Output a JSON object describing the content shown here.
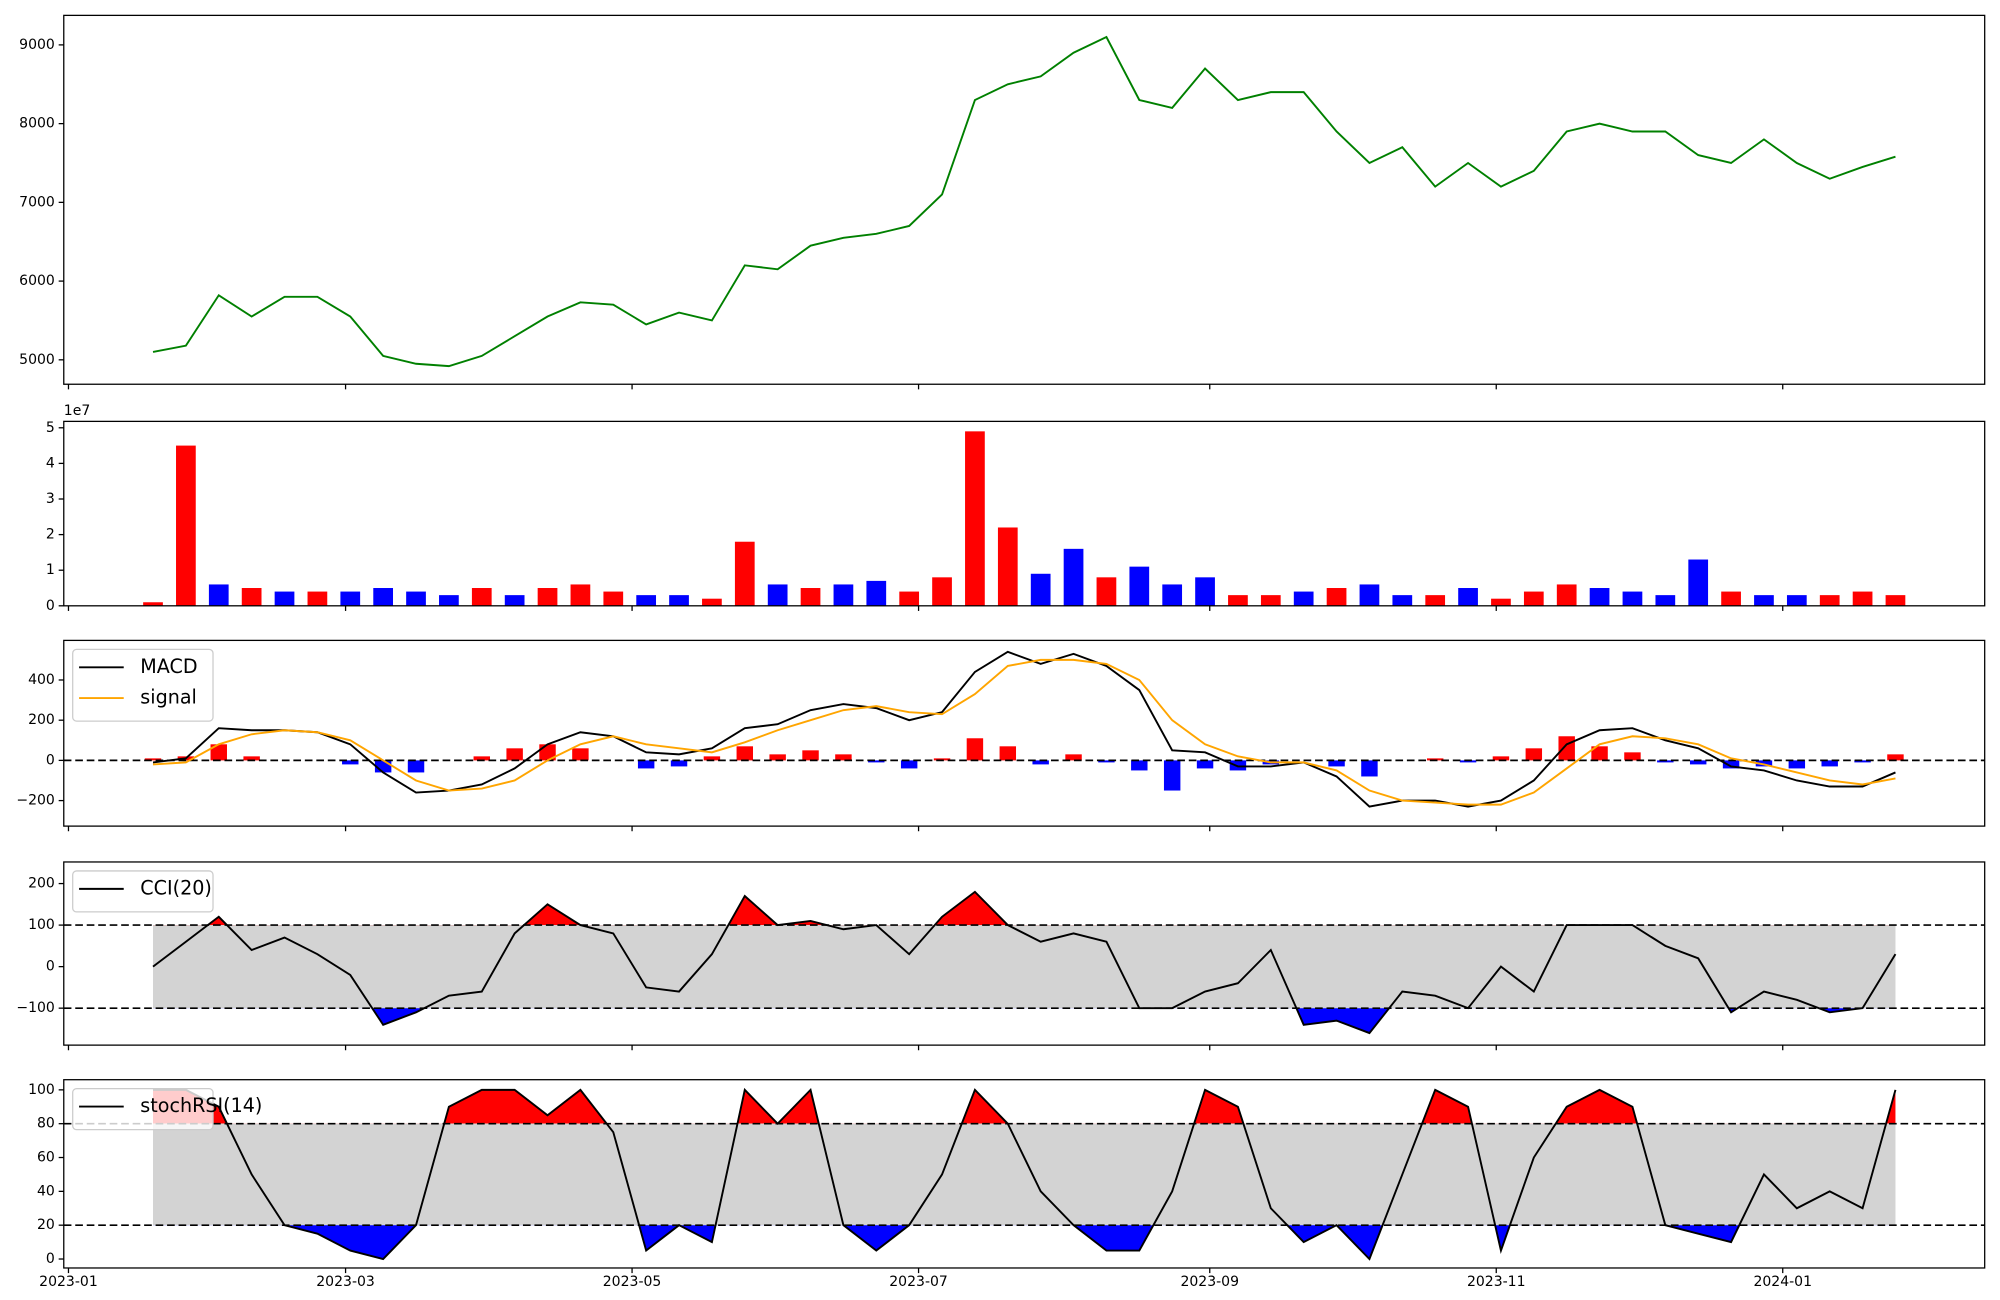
{
  "chart_data": [
    {
      "type": "line",
      "ylim": [
        4690,
        9375
      ],
      "yticks": [
        5000,
        6000,
        7000,
        8000,
        9000
      ],
      "series": [
        {
          "color": "green",
          "values": [
            5100,
            5180,
            5820,
            5550,
            5800,
            5800,
            5550,
            5050,
            4950,
            4920,
            5050,
            5300,
            5550,
            5730,
            5700,
            5450,
            5600,
            5500,
            6200,
            6150,
            6450,
            6550,
            6600,
            6700,
            7100,
            8300,
            8500,
            8600,
            8900,
            9100,
            8300,
            8200,
            8700,
            8300,
            8400,
            8400,
            7900,
            7500,
            7700,
            7200,
            7500,
            7200,
            7400,
            7900,
            8000,
            7900,
            7900,
            7600,
            7500,
            7800,
            7500,
            7300,
            7450,
            7580
          ]
        }
      ]
    },
    {
      "type": "bar",
      "ylim": [
        0,
        5.18
      ],
      "yticks": [
        0,
        1,
        2,
        3,
        4,
        5
      ],
      "y_offset_label": "1e7",
      "values": [
        0.1,
        4.5,
        0.6,
        0.5,
        0.4,
        0.4,
        0.4,
        0.5,
        0.4,
        0.3,
        0.5,
        0.3,
        0.5,
        0.6,
        0.4,
        0.3,
        0.3,
        0.2,
        1.8,
        0.6,
        0.5,
        0.6,
        0.7,
        0.4,
        0.8,
        4.9,
        2.2,
        0.9,
        1.6,
        0.8,
        1.1,
        0.6,
        0.8,
        0.3,
        0.3,
        0.4,
        0.5,
        0.6,
        0.3,
        0.3,
        0.5,
        0.2,
        0.4,
        0.6,
        0.5,
        0.4,
        0.3,
        1.3,
        0.4,
        0.3,
        0.3,
        0.3,
        0.4,
        0.3
      ],
      "colors": [
        "red",
        "red",
        "blue",
        "red",
        "blue",
        "red",
        "blue",
        "blue",
        "blue",
        "blue",
        "red",
        "blue",
        "red",
        "red",
        "red",
        "blue",
        "blue",
        "red",
        "red",
        "blue",
        "red",
        "blue",
        "blue",
        "red",
        "red",
        "red",
        "red",
        "blue",
        "blue",
        "red",
        "blue",
        "blue",
        "blue",
        "red",
        "red",
        "blue",
        "red",
        "blue",
        "blue",
        "red",
        "blue",
        "red",
        "red",
        "red",
        "blue",
        "blue",
        "blue",
        "blue",
        "red",
        "blue",
        "blue",
        "red",
        "red",
        "red"
      ]
    },
    {
      "type": "macd",
      "ylim": [
        -327,
        597
      ],
      "yticks": [
        {
          "value": -200,
          "label": "−200"
        },
        0,
        200,
        400
      ],
      "reference_line": 0,
      "series": [
        {
          "name": "MACD",
          "color": "black",
          "values": [
            -10,
            10,
            160,
            150,
            150,
            140,
            80,
            -60,
            -160,
            -150,
            -120,
            -40,
            80,
            140,
            120,
            40,
            30,
            60,
            160,
            180,
            250,
            280,
            260,
            200,
            240,
            440,
            540,
            480,
            530,
            470,
            350,
            50,
            40,
            -30,
            -30,
            -10,
            -80,
            -230,
            -200,
            -200,
            -230,
            -200,
            -100,
            80,
            150,
            160,
            100,
            60,
            -30,
            -50,
            -100,
            -130,
            -130,
            -60
          ]
        },
        {
          "name": "signal",
          "color": "orange",
          "values": [
            -20,
            -10,
            80,
            130,
            150,
            140,
            100,
            0,
            -100,
            -150,
            -140,
            -100,
            0,
            80,
            120,
            80,
            60,
            40,
            90,
            150,
            200,
            250,
            270,
            240,
            230,
            330,
            470,
            500,
            500,
            480,
            400,
            200,
            80,
            20,
            -10,
            -10,
            -50,
            -150,
            -200,
            -210,
            -220,
            -220,
            -160,
            -40,
            80,
            120,
            110,
            80,
            10,
            -20,
            -60,
            -100,
            -120,
            -90
          ]
        }
      ],
      "histogram": {
        "positive_color": "red",
        "negative_color": "blue",
        "values": [
          10,
          20,
          80,
          20,
          0,
          0,
          -20,
          -60,
          -60,
          0,
          20,
          60,
          80,
          60,
          0,
          -40,
          -30,
          20,
          70,
          30,
          50,
          30,
          -10,
          -40,
          10,
          110,
          70,
          -20,
          30,
          -10,
          -50,
          -150,
          -40,
          -50,
          -20,
          0,
          -30,
          -80,
          0,
          10,
          -10,
          20,
          60,
          120,
          70,
          40,
          -10,
          -20,
          -40,
          -30,
          -40,
          -30,
          -10,
          30
        ]
      }
    },
    {
      "type": "oscillator",
      "ylim": [
        -189,
        252
      ],
      "yticks": [
        {
          "value": -100,
          "label": "−100"
        },
        0,
        100,
        200
      ],
      "thresholds": [
        -100,
        100
      ],
      "band_color": "lightgray",
      "upper_fill": "red",
      "lower_fill": "blue",
      "series": [
        {
          "name": "CCI(20)",
          "color": "black",
          "values": [
            0,
            60,
            120,
            40,
            70,
            30,
            -20,
            -140,
            -110,
            -70,
            -60,
            80,
            150,
            100,
            80,
            -50,
            -60,
            30,
            170,
            100,
            110,
            90,
            100,
            30,
            120,
            180,
            100,
            60,
            80,
            60,
            -100,
            -100,
            -60,
            -40,
            40,
            -140,
            -130,
            -160,
            -60,
            -70,
            -100,
            0,
            -60,
            100,
            100,
            100,
            50,
            20,
            -110,
            -60,
            -80,
            -110,
            -100,
            30
          ]
        }
      ]
    },
    {
      "type": "oscillator",
      "ylim": [
        -5.3,
        106
      ],
      "yticks": [
        0,
        20,
        40,
        60,
        80,
        100
      ],
      "thresholds": [
        20,
        80
      ],
      "band_color": "lightgray",
      "upper_fill": "red",
      "lower_fill": "blue",
      "series": [
        {
          "name": "stochRSI(14)",
          "color": "black",
          "values": [
            100,
            100,
            90,
            50,
            20,
            15,
            5,
            0,
            20,
            90,
            100,
            100,
            85,
            100,
            75,
            5,
            20,
            10,
            100,
            80,
            100,
            20,
            5,
            20,
            50,
            100,
            80,
            40,
            20,
            5,
            5,
            40,
            100,
            90,
            30,
            10,
            20,
            0,
            50,
            100,
            90,
            5,
            60,
            90,
            100,
            90,
            20,
            15,
            10,
            50,
            30,
            40,
            30,
            100
          ]
        }
      ],
      "xlim": [
        -1,
        408
      ],
      "xticks": [
        {
          "value": 0,
          "label": "2023-01"
        },
        {
          "value": 59,
          "label": "2023-03"
        },
        {
          "value": 120,
          "label": "2023-05"
        },
        {
          "value": 181,
          "label": "2023-07"
        },
        {
          "value": 243,
          "label": "2023-09"
        },
        {
          "value": 304,
          "label": "2023-11"
        },
        {
          "value": 365,
          "label": "2024-01"
        }
      ],
      "x": [
        18,
        25,
        32,
        39,
        46,
        53,
        60,
        67,
        74,
        81,
        88,
        95,
        102,
        109,
        116,
        123,
        130,
        137,
        144,
        151,
        158,
        165,
        172,
        179,
        186,
        193,
        200,
        207,
        214,
        221,
        228,
        235,
        242,
        249,
        256,
        263,
        270,
        277,
        284,
        291,
        298,
        305,
        312,
        319,
        326,
        333,
        340,
        347,
        354,
        361,
        368,
        375,
        382,
        389
      ]
    }
  ]
}
